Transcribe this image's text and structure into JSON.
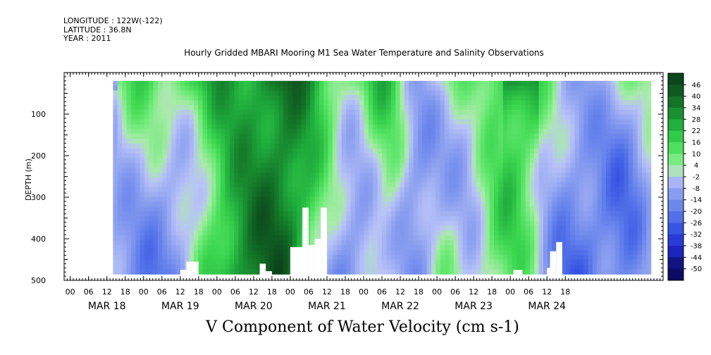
{
  "meta": {
    "longitude": "LONGITUDE : 122W(-122)",
    "latitude": "LATITUDE : 36.8N",
    "year": "YEAR : 2011"
  },
  "chart_data": {
    "type": "heatmap",
    "title": "Hourly Gridded MBARI Mooring M1 Sea Water Temperature and Salinity Observations",
    "colorbar_title": "V Component of Water Velocity (cm s-1)",
    "ylabel": "DEPTH (m)",
    "ylim": [
      500,
      0
    ],
    "y_ticks": [
      100,
      200,
      300,
      400,
      500
    ],
    "x_range_hours": [
      -14,
      182
    ],
    "data_range_hours": [
      2,
      178
    ],
    "data_depth_range": [
      20,
      485
    ],
    "hour_ticks": [
      "00",
      "06",
      "12",
      "18",
      "00",
      "06",
      "12",
      "18",
      "00",
      "06",
      "12",
      "18",
      "00",
      "06",
      "12",
      "18",
      "00",
      "06",
      "12",
      "18",
      "00",
      "06",
      "12",
      "18",
      "00",
      "06",
      "12",
      "18"
    ],
    "hour_tick_first": -12,
    "date_labels": [
      "MAR 18",
      "MAR 19",
      "MAR 20",
      "MAR 21",
      "MAR 22",
      "MAR 23",
      "MAR 24"
    ],
    "date_label_hours": [
      0,
      24,
      48,
      72,
      96,
      120,
      144
    ],
    "colorbar_levels": [
      "-50",
      "-44",
      "-38",
      "-32",
      "-26",
      "-20",
      "-14",
      "-8",
      "-2",
      "4",
      "10",
      "16",
      "22",
      "28",
      "34",
      "40",
      "46"
    ],
    "vmin": -50,
    "vmax": 50,
    "missing_regions": [
      {
        "hours": [
          26,
          30
        ],
        "depths": [
          455,
          490
        ]
      },
      {
        "hours": [
          24,
          26
        ],
        "depths": [
          475,
          490
        ]
      },
      {
        "hours": [
          50,
          52
        ],
        "depths": [
          460,
          490
        ]
      },
      {
        "hours": [
          52,
          54
        ],
        "depths": [
          478,
          490
        ]
      },
      {
        "hours": [
          60,
          65
        ],
        "depths": [
          420,
          490
        ]
      },
      {
        "hours": [
          64,
          66
        ],
        "depths": [
          325,
          490
        ]
      },
      {
        "hours": [
          66,
          68
        ],
        "depths": [
          415,
          490
        ]
      },
      {
        "hours": [
          68,
          70
        ],
        "depths": [
          400,
          490
        ]
      },
      {
        "hours": [
          70,
          72
        ],
        "depths": [
          325,
          490
        ]
      },
      {
        "hours": [
          133,
          136
        ],
        "depths": [
          475,
          490
        ]
      },
      {
        "hours": [
          144,
          145
        ],
        "depths": [
          470,
          490
        ]
      },
      {
        "hours": [
          145,
          147
        ],
        "depths": [
          430,
          490
        ]
      },
      {
        "hours": [
          147,
          149
        ],
        "depths": [
          408,
          490
        ]
      }
    ]
  }
}
